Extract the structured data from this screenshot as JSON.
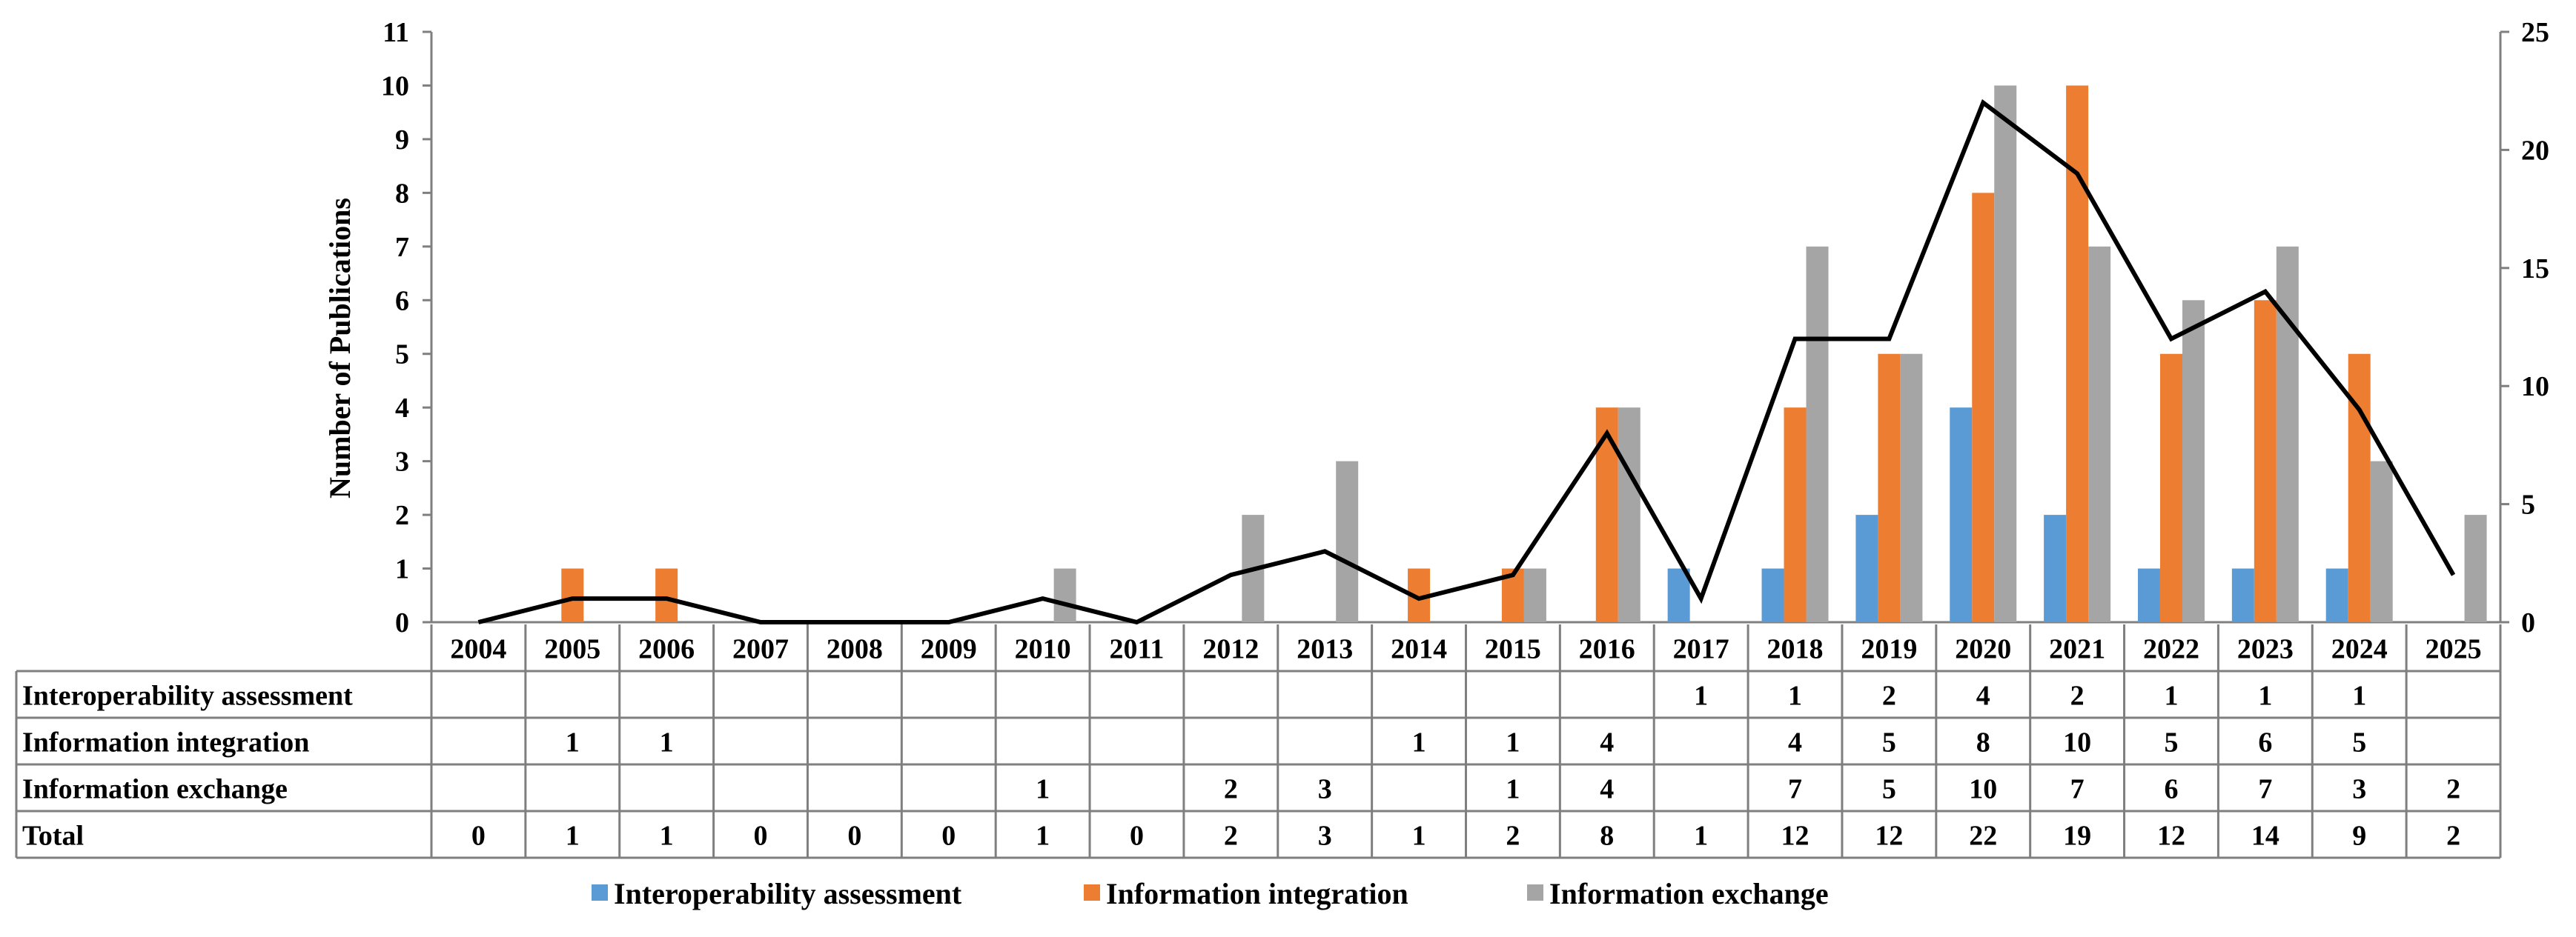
{
  "chart_data": {
    "type": "bar",
    "categories": [
      "2004",
      "2005",
      "2006",
      "2007",
      "2008",
      "2009",
      "2010",
      "2011",
      "2012",
      "2013",
      "2014",
      "2015",
      "2016",
      "2017",
      "2018",
      "2019",
      "2020",
      "2021",
      "2022",
      "2023",
      "2024",
      "2025"
    ],
    "ylabel": "Number of Publications",
    "ylim": [
      0,
      11
    ],
    "y_ticks": [
      "0",
      "1",
      "2",
      "3",
      "4",
      "5",
      "6",
      "7",
      "8",
      "9",
      "10",
      "11"
    ],
    "y2lim": [
      0,
      25
    ],
    "y2_ticks": [
      "0",
      "5",
      "10",
      "15",
      "20",
      "25"
    ],
    "grid": false,
    "legend_position": "bottom",
    "series": [
      {
        "name": "Interoperability assessment",
        "color": "#5B9BD5",
        "values": [
          0,
          0,
          0,
          0,
          0,
          0,
          0,
          0,
          0,
          0,
          0,
          0,
          0,
          1,
          1,
          2,
          4,
          2,
          1,
          1,
          1,
          0
        ],
        "table": [
          "",
          "",
          "",
          "",
          "",
          "",
          "",
          "",
          "",
          "",
          "",
          "",
          "",
          "1",
          "1",
          "2",
          "4",
          "2",
          "1",
          "1",
          "1",
          ""
        ]
      },
      {
        "name": "Information integration",
        "color": "#ED7D31",
        "values": [
          0,
          1,
          1,
          0,
          0,
          0,
          0,
          0,
          0,
          0,
          1,
          1,
          4,
          0,
          4,
          5,
          8,
          10,
          5,
          6,
          5,
          0
        ],
        "table": [
          "",
          "1",
          "1",
          "",
          "",
          "",
          "",
          "",
          "",
          "",
          "1",
          "1",
          "4",
          "",
          "4",
          "5",
          "8",
          "10",
          "5",
          "6",
          "5",
          ""
        ]
      },
      {
        "name": "Information exchange",
        "color": "#A5A5A5",
        "values": [
          0,
          0,
          0,
          0,
          0,
          0,
          1,
          0,
          2,
          3,
          0,
          1,
          4,
          0,
          7,
          5,
          10,
          7,
          6,
          7,
          3,
          2
        ],
        "table": [
          "",
          "",
          "",
          "",
          "",
          "",
          "1",
          "",
          "2",
          "3",
          "",
          "1",
          "4",
          "",
          "7",
          "5",
          "10",
          "7",
          "6",
          "7",
          "3",
          "2"
        ]
      }
    ],
    "total": {
      "name": "Total",
      "axis": "secondary",
      "color": "#000000",
      "values": [
        0,
        1,
        1,
        0,
        0,
        0,
        1,
        0,
        2,
        3,
        1,
        2,
        8,
        1,
        12,
        12,
        22,
        19,
        12,
        14,
        9,
        2
      ],
      "table": [
        "0",
        "1",
        "1",
        "0",
        "0",
        "0",
        "1",
        "0",
        "2",
        "3",
        "1",
        "2",
        "8",
        "1",
        "12",
        "12",
        "22",
        "19",
        "12",
        "14",
        "9",
        "2"
      ]
    }
  }
}
